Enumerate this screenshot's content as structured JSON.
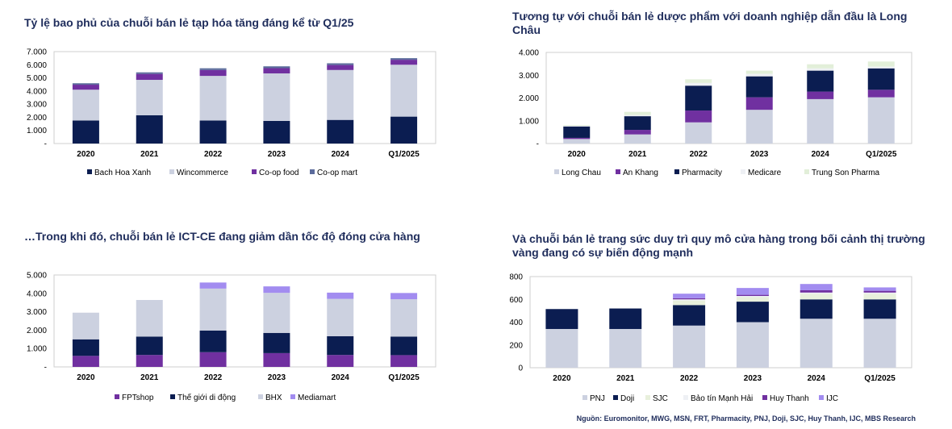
{
  "colors": {
    "navy": "#0b1d51",
    "lightgray": "#ccd1e0",
    "purple": "#7030a0",
    "steel": "#5b6b9b",
    "lavender": "#a28cf0",
    "cream": "#e8f0dc",
    "mint": "#e2efd9",
    "palegray": "#eef0f4"
  },
  "source": "Nguồn: Euromonitor, MWG, MSN, FRT, Pharmacity, PNJ, Doji, SJC, Huy Thanh, IJC, MBS Research",
  "chart_data": [
    {
      "type": "bar",
      "stacked": true,
      "title": "Tỷ lệ bao phủ của chuỗi bán lẻ tạp hóa tăng đáng kể từ Q1/25",
      "categories": [
        "2020",
        "2021",
        "2022",
        "2023",
        "2024",
        "Q1/2025"
      ],
      "ylim": [
        0,
        7000
      ],
      "yticks": [
        0,
        1000,
        2000,
        3000,
        4000,
        5000,
        6000,
        7000
      ],
      "ytick_labels": [
        "-",
        "1.000",
        "2.000",
        "3.000",
        "4.000",
        "5.000",
        "6.000",
        "7.000"
      ],
      "legend_position": "bottom",
      "series": [
        {
          "name": "Bach Hoa Xanh",
          "color": "#0b1d51",
          "values": [
            1750,
            2150,
            1750,
            1720,
            1800,
            2050
          ]
        },
        {
          "name": "Wincommerce",
          "color": "#ccd1e0",
          "values": [
            2350,
            2700,
            3400,
            3620,
            3800,
            3950
          ]
        },
        {
          "name": "Co-op food",
          "color": "#7030a0",
          "values": [
            380,
            450,
            450,
            400,
            380,
            380
          ]
        },
        {
          "name": "Co-op mart",
          "color": "#5b6b9b",
          "values": [
            110,
            120,
            130,
            140,
            130,
            120
          ]
        }
      ]
    },
    {
      "type": "bar",
      "stacked": true,
      "title": "Tương tự với chuỗi bán lẻ dược phẩm với doanh nghiệp dẫn đầu là Long Châu",
      "categories": [
        "2020",
        "2021",
        "2022",
        "2023",
        "2024",
        "Q1/2025"
      ],
      "ylim": [
        0,
        4000
      ],
      "yticks": [
        0,
        1000,
        2000,
        3000,
        4000
      ],
      "ytick_labels": [
        "-",
        "1.000",
        "2.000",
        "3.000",
        "4.000"
      ],
      "legend_position": "bottom",
      "series": [
        {
          "name": "Long Chau",
          "color": "#ccd1e0",
          "values": [
            200,
            400,
            930,
            1480,
            1950,
            2030
          ]
        },
        {
          "name": "An Khang",
          "color": "#7030a0",
          "values": [
            50,
            200,
            520,
            550,
            330,
            330
          ]
        },
        {
          "name": "Pharmacity",
          "color": "#0b1d51",
          "values": [
            500,
            600,
            1090,
            920,
            920,
            940
          ]
        },
        {
          "name": "Medicare",
          "color": "#eef0f4",
          "values": [
            30,
            50,
            120,
            110,
            100,
            80
          ]
        },
        {
          "name": "Trung Son Pharma",
          "color": "#e2efd9",
          "values": [
            30,
            140,
            160,
            140,
            180,
            220
          ]
        }
      ]
    },
    {
      "type": "bar",
      "stacked": true,
      "title": "…Trong khi đó, chuỗi bán lẻ ICT-CE đang giảm dần tốc độ đóng cửa hàng",
      "categories": [
        "2020",
        "2021",
        "2022",
        "2023",
        "2024",
        "Q1/2025"
      ],
      "ylim": [
        0,
        5000
      ],
      "yticks": [
        0,
        1000,
        2000,
        3000,
        4000,
        5000
      ],
      "ytick_labels": [
        "-",
        "1.000",
        "2.000",
        "3.000",
        "4.000",
        "5.000"
      ],
      "legend_position": "bottom",
      "series": [
        {
          "name": "FPTshop",
          "color": "#7030a0",
          "values": [
            600,
            650,
            800,
            750,
            650,
            640
          ]
        },
        {
          "name": "Thế giới di động",
          "color": "#0b1d51",
          "values": [
            900,
            1000,
            1180,
            1100,
            1020,
            1010
          ]
        },
        {
          "name": "BHX",
          "color": "#ccd1e0",
          "values": [
            1450,
            1990,
            2280,
            2180,
            2030,
            2030
          ]
        },
        {
          "name": "Mediamart",
          "color": "#a28cf0",
          "values": [
            0,
            0,
            330,
            350,
            340,
            340
          ]
        }
      ]
    },
    {
      "type": "bar",
      "stacked": true,
      "title": "Và chuỗi bán lẻ trang sức duy trì quy mô cửa hàng trong bối cảnh thị trường vàng đang có sự biến động mạnh",
      "categories": [
        "2020",
        "2021",
        "2022",
        "2023",
        "2024",
        "Q1/2025"
      ],
      "ylim": [
        0,
        800
      ],
      "yticks": [
        0,
        200,
        400,
        600,
        800
      ],
      "ytick_labels": [
        "0",
        "200",
        "400",
        "600",
        "800"
      ],
      "legend_position": "bottom",
      "series": [
        {
          "name": "PNJ",
          "color": "#ccd1e0",
          "values": [
            340,
            340,
            370,
            400,
            430,
            430
          ]
        },
        {
          "name": "Doji",
          "color": "#0b1d51",
          "values": [
            175,
            180,
            180,
            180,
            170,
            170
          ]
        },
        {
          "name": "SJC",
          "color": "#e8f0dc",
          "values": [
            0,
            0,
            40,
            40,
            50,
            50
          ]
        },
        {
          "name": "Bảo tín Mạnh Hải",
          "color": "#eef0f4",
          "values": [
            0,
            0,
            10,
            10,
            10,
            10
          ]
        },
        {
          "name": "Huy Thanh",
          "color": "#7030a0",
          "values": [
            0,
            0,
            10,
            10,
            20,
            15
          ]
        },
        {
          "name": "IJC",
          "color": "#a28cf0",
          "values": [
            0,
            0,
            40,
            60,
            55,
            30
          ]
        }
      ]
    }
  ]
}
